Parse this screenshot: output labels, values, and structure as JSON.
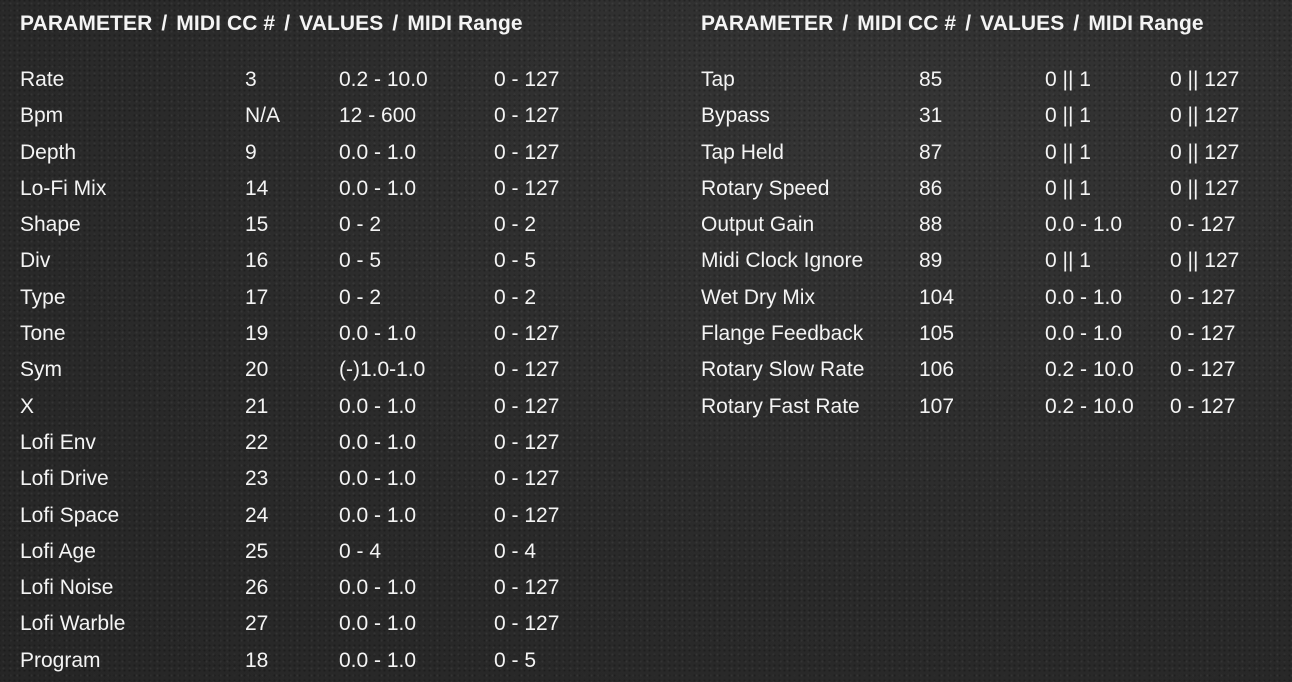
{
  "left_table": {
    "header": {
      "parameter": "PARAMETER",
      "midi_cc": "MIDI CC #",
      "values": "VALUES",
      "midi_range": "MIDI Range",
      "separator": "/"
    },
    "rows": [
      {
        "name": "Rate",
        "cc": "3",
        "values": "0.2 - 10.0",
        "range": "0 - 127"
      },
      {
        "name": "Bpm",
        "cc": "N/A",
        "values": "12 - 600",
        "range": "0 - 127"
      },
      {
        "name": "Depth",
        "cc": "9",
        "values": "0.0 - 1.0",
        "range": "0 - 127"
      },
      {
        "name": "Lo-Fi Mix",
        "cc": "14",
        "values": "0.0 - 1.0",
        "range": "0 - 127"
      },
      {
        "name": "Shape",
        "cc": "15",
        "values": "0 - 2",
        "range": "0 - 2"
      },
      {
        "name": "Div",
        "cc": "16",
        "values": "0 - 5",
        "range": "0 - 5"
      },
      {
        "name": "Type",
        "cc": "17",
        "values": "0 - 2",
        "range": "0 - 2"
      },
      {
        "name": "Tone",
        "cc": "19",
        "values": "0.0 - 1.0",
        "range": "0 - 127"
      },
      {
        "name": "Sym",
        "cc": "20",
        "values": "(-)1.0-1.0",
        "range": "0 - 127"
      },
      {
        "name": "X",
        "cc": "21",
        "values": "0.0 - 1.0",
        "range": "0 - 127"
      },
      {
        "name": "Lofi Env",
        "cc": "22",
        "values": "0.0 - 1.0",
        "range": "0 - 127"
      },
      {
        "name": "Lofi Drive",
        "cc": "23",
        "values": "0.0 - 1.0",
        "range": "0 - 127"
      },
      {
        "name": "Lofi Space",
        "cc": "24",
        "values": "0.0 - 1.0",
        "range": "0 - 127"
      },
      {
        "name": "Lofi Age",
        "cc": "25",
        "values": "0 - 4",
        "range": "0 - 4"
      },
      {
        "name": "Lofi Noise",
        "cc": "26",
        "values": "0.0 - 1.0",
        "range": "0 - 127"
      },
      {
        "name": "Lofi Warble",
        "cc": "27",
        "values": "0.0 - 1.0",
        "range": "0 - 127"
      },
      {
        "name": "Program",
        "cc": "18",
        "values": "0.0 - 1.0",
        "range": "0 - 5"
      }
    ]
  },
  "right_table": {
    "header": {
      "parameter": "PARAMETER",
      "midi_cc": "MIDI CC #",
      "values": "VALUES",
      "midi_range": "MIDI Range",
      "separator": "/"
    },
    "rows": [
      {
        "name": "Tap",
        "cc": "85",
        "values": "0 || 1",
        "range": "0 || 127"
      },
      {
        "name": "Bypass",
        "cc": "31",
        "values": "0 || 1",
        "range": "0 || 127"
      },
      {
        "name": "Tap Held",
        "cc": "87",
        "values": "0 || 1",
        "range": "0 || 127"
      },
      {
        "name": "Rotary Speed",
        "cc": "86",
        "values": "0 || 1",
        "range": "0 || 127"
      },
      {
        "name": "Output Gain",
        "cc": "88",
        "values": "0.0 - 1.0",
        "range": "0 - 127"
      },
      {
        "name": "Midi Clock Ignore",
        "cc": "89",
        "values": "0 || 1",
        "range": "0 || 127"
      },
      {
        "name": "Wet Dry Mix",
        "cc": "104",
        "values": "0.0 - 1.0",
        "range": "0 - 127"
      },
      {
        "name": "Flange Feedback",
        "cc": "105",
        "values": "0.0 - 1.0",
        "range": "0 - 127"
      },
      {
        "name": "Rotary Slow Rate",
        "cc": "106",
        "values": "0.2 - 10.0",
        "range": "0 - 127"
      },
      {
        "name": "Rotary Fast Rate",
        "cc": "107",
        "values": "0.2 - 10.0",
        "range": "0 - 127"
      }
    ]
  }
}
